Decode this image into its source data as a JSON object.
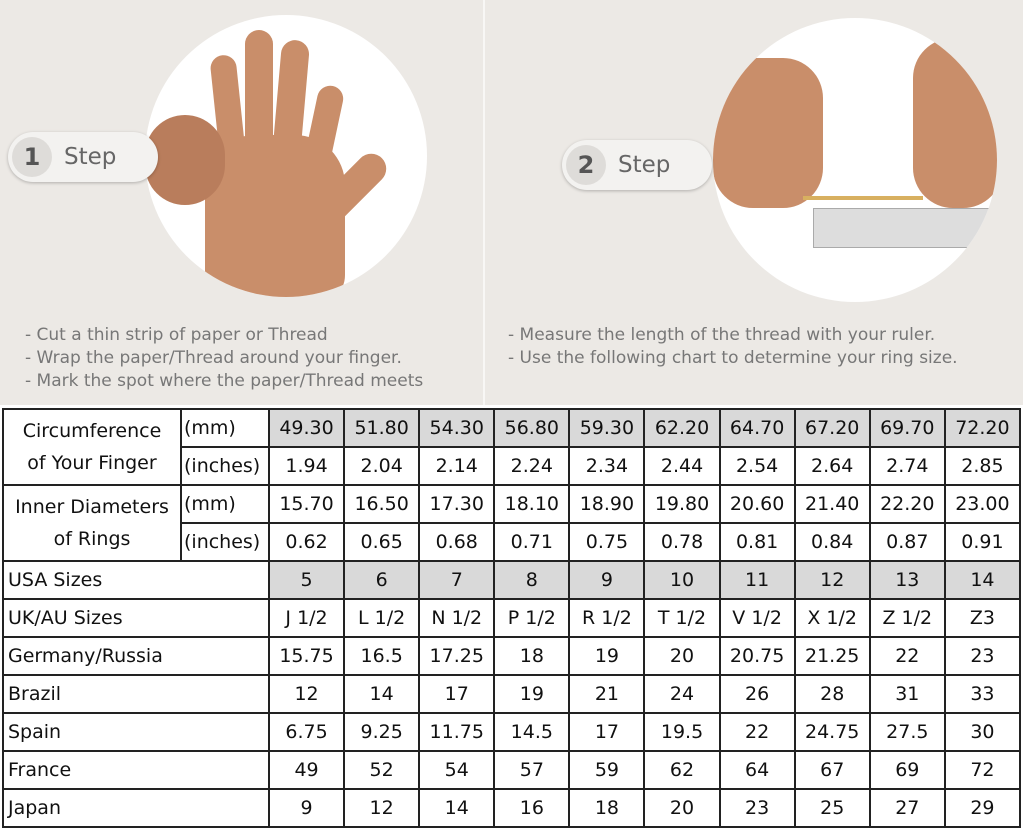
{
  "steps": [
    {
      "number": "1",
      "label": "Step",
      "instructions": [
        "- Cut a thin strip of paper or Thread",
        "- Wrap the paper/Thread around your finger.",
        "- Mark the spot where the paper/Thread meets"
      ]
    },
    {
      "number": "2",
      "label": "Step",
      "instructions": [
        "- Measure the length of the thread with your ruler.",
        "- Use the following chart to determine your ring size."
      ]
    }
  ],
  "table": {
    "circumference": {
      "label_line1": "Circumference",
      "label_line2": "of Your Finger",
      "unit_mm": "(mm)",
      "unit_in": "(inches)",
      "mm": [
        "49.30",
        "51.80",
        "54.30",
        "56.80",
        "59.30",
        "62.20",
        "64.70",
        "67.20",
        "69.70",
        "72.20"
      ],
      "inches": [
        "1.94",
        "2.04",
        "2.14",
        "2.24",
        "2.34",
        "2.44",
        "2.54",
        "2.64",
        "2.74",
        "2.85"
      ]
    },
    "inner_diameter": {
      "label_line1": "Inner Diameters",
      "label_line2": "of Rings",
      "unit_mm": "(mm)",
      "unit_in": "(inches)",
      "mm": [
        "15.70",
        "16.50",
        "17.30",
        "18.10",
        "18.90",
        "19.80",
        "20.60",
        "21.40",
        "22.20",
        "23.00"
      ],
      "inches": [
        "0.62",
        "0.65",
        "0.68",
        "0.71",
        "0.75",
        "0.78",
        "0.81",
        "0.84",
        "0.87",
        "0.91"
      ]
    },
    "rows": [
      {
        "label": "USA Sizes",
        "values": [
          "5",
          "6",
          "7",
          "8",
          "9",
          "10",
          "11",
          "12",
          "13",
          "14"
        ],
        "shaded": true
      },
      {
        "label": "UK/AU Sizes",
        "values": [
          "J 1/2",
          "L 1/2",
          "N 1/2",
          "P 1/2",
          "R 1/2",
          "T 1/2",
          "V 1/2",
          "X 1/2",
          "Z 1/2",
          "Z3"
        ]
      },
      {
        "label": "Germany/Russia",
        "values": [
          "15.75",
          "16.5",
          "17.25",
          "18",
          "19",
          "20",
          "20.75",
          "21.25",
          "22",
          "23"
        ]
      },
      {
        "label": "Brazil",
        "values": [
          "12",
          "14",
          "17",
          "19",
          "21",
          "24",
          "26",
          "28",
          "31",
          "33"
        ]
      },
      {
        "label": "Spain",
        "values": [
          "6.75",
          "9.25",
          "11.75",
          "14.5",
          "17",
          "19.5",
          "22",
          "24.75",
          "27.5",
          "30"
        ]
      },
      {
        "label": "France",
        "values": [
          "49",
          "52",
          "54",
          "57",
          "59",
          "62",
          "64",
          "67",
          "69",
          "72"
        ]
      },
      {
        "label": "Japan",
        "values": [
          "9",
          "12",
          "14",
          "16",
          "18",
          "20",
          "23",
          "25",
          "27",
          "29"
        ]
      }
    ]
  },
  "colors": {
    "background": "#ece9e5",
    "header_shade": "#d9d9d9",
    "skin": "#c98e6a"
  }
}
